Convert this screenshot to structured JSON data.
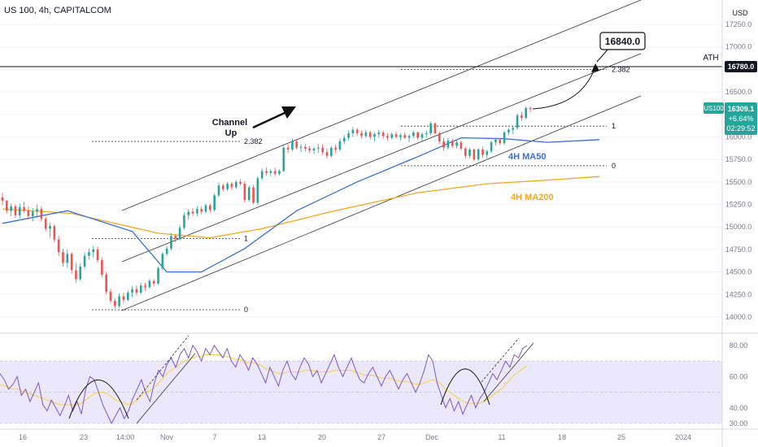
{
  "header": {
    "symbol_line": "US 100, 4h, CAPITALCOM",
    "currency": "USD"
  },
  "colors": {
    "bull": "#26a69a",
    "bear": "#ef5350",
    "ma50": "#3a6fd8",
    "ma200": "#f5a623",
    "rsi": "#7e57c2",
    "rsi_ma": "#f2d23c",
    "rsi_band": "#ece8fb",
    "price_tag": "#26a69a",
    "ath_tag": "#131722"
  },
  "chart_data": [
    {
      "type": "candlestick",
      "name": "price",
      "y_axis_ticks": [
        17250,
        17000,
        16750,
        16500,
        16250,
        16000,
        15750,
        15500,
        15250,
        15000,
        14750,
        14500,
        14250,
        14000
      ],
      "ylim": [
        13900,
        17350
      ],
      "x_tick_labels": [
        "16",
        "23",
        "14:00",
        "Nov",
        "7",
        "13",
        "20",
        "27",
        "Dec",
        "11",
        "18",
        "25",
        "2024"
      ],
      "candles": [
        {
          "o": 15330,
          "h": 15380,
          "l": 15240,
          "c": 15290
        },
        {
          "o": 15290,
          "h": 15300,
          "l": 15150,
          "c": 15180
        },
        {
          "o": 15180,
          "h": 15260,
          "l": 15120,
          "c": 15230
        },
        {
          "o": 15230,
          "h": 15250,
          "l": 15100,
          "c": 15130
        },
        {
          "o": 15130,
          "h": 15260,
          "l": 15090,
          "c": 15220
        },
        {
          "o": 15220,
          "h": 15280,
          "l": 15150,
          "c": 15180
        },
        {
          "o": 15180,
          "h": 15230,
          "l": 15080,
          "c": 15120
        },
        {
          "o": 15120,
          "h": 15210,
          "l": 15060,
          "c": 15170
        },
        {
          "o": 15170,
          "h": 15250,
          "l": 15120,
          "c": 15200
        },
        {
          "o": 15200,
          "h": 15230,
          "l": 15060,
          "c": 15090
        },
        {
          "o": 15090,
          "h": 15120,
          "l": 14950,
          "c": 14980
        },
        {
          "o": 14980,
          "h": 15050,
          "l": 14880,
          "c": 15010
        },
        {
          "o": 15010,
          "h": 15030,
          "l": 14830,
          "c": 14860
        },
        {
          "o": 14860,
          "h": 14900,
          "l": 14680,
          "c": 14720
        },
        {
          "o": 14720,
          "h": 14760,
          "l": 14560,
          "c": 14600
        },
        {
          "o": 14600,
          "h": 14750,
          "l": 14550,
          "c": 14700
        },
        {
          "o": 14700,
          "h": 14720,
          "l": 14480,
          "c": 14520
        },
        {
          "o": 14520,
          "h": 14600,
          "l": 14380,
          "c": 14420
        },
        {
          "o": 14420,
          "h": 14600,
          "l": 14400,
          "c": 14560
        },
        {
          "o": 14560,
          "h": 14720,
          "l": 14530,
          "c": 14680
        },
        {
          "o": 14680,
          "h": 14760,
          "l": 14640,
          "c": 14720
        },
        {
          "o": 14720,
          "h": 14790,
          "l": 14660,
          "c": 14750
        },
        {
          "o": 14750,
          "h": 14780,
          "l": 14600,
          "c": 14630
        },
        {
          "o": 14630,
          "h": 14660,
          "l": 14440,
          "c": 14470
        },
        {
          "o": 14470,
          "h": 14500,
          "l": 14250,
          "c": 14280
        },
        {
          "o": 14280,
          "h": 14310,
          "l": 14150,
          "c": 14180
        },
        {
          "o": 14180,
          "h": 14210,
          "l": 14090,
          "c": 14120
        },
        {
          "o": 14120,
          "h": 14260,
          "l": 14100,
          "c": 14230
        },
        {
          "o": 14230,
          "h": 14270,
          "l": 14150,
          "c": 14190
        },
        {
          "o": 14190,
          "h": 14300,
          "l": 14170,
          "c": 14270
        },
        {
          "o": 14270,
          "h": 14340,
          "l": 14220,
          "c": 14310
        },
        {
          "o": 14310,
          "h": 14350,
          "l": 14240,
          "c": 14270
        },
        {
          "o": 14270,
          "h": 14380,
          "l": 14250,
          "c": 14350
        },
        {
          "o": 14350,
          "h": 14380,
          "l": 14290,
          "c": 14330
        },
        {
          "o": 14330,
          "h": 14420,
          "l": 14310,
          "c": 14400
        },
        {
          "o": 14400,
          "h": 14420,
          "l": 14340,
          "c": 14370
        },
        {
          "o": 14370,
          "h": 14560,
          "l": 14360,
          "c": 14540
        },
        {
          "o": 14540,
          "h": 14720,
          "l": 14520,
          "c": 14700
        },
        {
          "o": 14700,
          "h": 14790,
          "l": 14680,
          "c": 14760
        },
        {
          "o": 14760,
          "h": 14930,
          "l": 14740,
          "c": 14900
        },
        {
          "o": 14900,
          "h": 14920,
          "l": 14830,
          "c": 14870
        },
        {
          "o": 14870,
          "h": 15020,
          "l": 14850,
          "c": 14990
        },
        {
          "o": 14990,
          "h": 15160,
          "l": 14970,
          "c": 15130
        },
        {
          "o": 15130,
          "h": 15200,
          "l": 15080,
          "c": 15170
        },
        {
          "o": 15170,
          "h": 15210,
          "l": 15120,
          "c": 15150
        },
        {
          "o": 15150,
          "h": 15230,
          "l": 15120,
          "c": 15200
        },
        {
          "o": 15200,
          "h": 15230,
          "l": 15140,
          "c": 15170
        },
        {
          "o": 15170,
          "h": 15260,
          "l": 15150,
          "c": 15240
        },
        {
          "o": 15240,
          "h": 15260,
          "l": 15160,
          "c": 15190
        },
        {
          "o": 15190,
          "h": 15380,
          "l": 15170,
          "c": 15350
        },
        {
          "o": 15350,
          "h": 15490,
          "l": 15330,
          "c": 15460
        },
        {
          "o": 15460,
          "h": 15480,
          "l": 15390,
          "c": 15420
        },
        {
          "o": 15420,
          "h": 15500,
          "l": 15400,
          "c": 15480
        },
        {
          "o": 15480,
          "h": 15500,
          "l": 15410,
          "c": 15440
        },
        {
          "o": 15440,
          "h": 15520,
          "l": 15420,
          "c": 15500
        },
        {
          "o": 15500,
          "h": 15530,
          "l": 15460,
          "c": 15480
        },
        {
          "o": 15480,
          "h": 15510,
          "l": 15270,
          "c": 15300
        },
        {
          "o": 15300,
          "h": 15460,
          "l": 15280,
          "c": 15440
        },
        {
          "o": 15440,
          "h": 15470,
          "l": 15250,
          "c": 15270
        },
        {
          "o": 15270,
          "h": 15560,
          "l": 15250,
          "c": 15540
        },
        {
          "o": 15540,
          "h": 15650,
          "l": 15520,
          "c": 15620
        },
        {
          "o": 15620,
          "h": 15660,
          "l": 15570,
          "c": 15600
        },
        {
          "o": 15600,
          "h": 15640,
          "l": 15560,
          "c": 15620
        },
        {
          "o": 15620,
          "h": 15660,
          "l": 15560,
          "c": 15590
        },
        {
          "o": 15590,
          "h": 15640,
          "l": 15570,
          "c": 15620
        },
        {
          "o": 15620,
          "h": 15900,
          "l": 15610,
          "c": 15880
        },
        {
          "o": 15880,
          "h": 15920,
          "l": 15820,
          "c": 15860
        },
        {
          "o": 15860,
          "h": 15980,
          "l": 15840,
          "c": 15950
        },
        {
          "o": 15950,
          "h": 15970,
          "l": 15860,
          "c": 15880
        },
        {
          "o": 15880,
          "h": 15920,
          "l": 15830,
          "c": 15890
        },
        {
          "o": 15890,
          "h": 15920,
          "l": 15840,
          "c": 15870
        },
        {
          "o": 15870,
          "h": 15900,
          "l": 15820,
          "c": 15850
        },
        {
          "o": 15850,
          "h": 15890,
          "l": 15810,
          "c": 15870
        },
        {
          "o": 15870,
          "h": 15920,
          "l": 15820,
          "c": 15880
        },
        {
          "o": 15880,
          "h": 15920,
          "l": 15800,
          "c": 15830
        },
        {
          "o": 15830,
          "h": 15870,
          "l": 15760,
          "c": 15790
        },
        {
          "o": 15790,
          "h": 15900,
          "l": 15770,
          "c": 15880
        },
        {
          "o": 15880,
          "h": 15910,
          "l": 15820,
          "c": 15860
        },
        {
          "o": 15860,
          "h": 15980,
          "l": 15840,
          "c": 15950
        },
        {
          "o": 15950,
          "h": 16020,
          "l": 15920,
          "c": 15990
        },
        {
          "o": 15990,
          "h": 16070,
          "l": 15960,
          "c": 16040
        },
        {
          "o": 16040,
          "h": 16110,
          "l": 16000,
          "c": 16080
        },
        {
          "o": 16080,
          "h": 16100,
          "l": 16010,
          "c": 16040
        },
        {
          "o": 16040,
          "h": 16070,
          "l": 15980,
          "c": 16010
        },
        {
          "o": 16010,
          "h": 16080,
          "l": 15990,
          "c": 16050
        },
        {
          "o": 16050,
          "h": 16070,
          "l": 15970,
          "c": 16000
        },
        {
          "o": 16000,
          "h": 16050,
          "l": 15950,
          "c": 16030
        },
        {
          "o": 16030,
          "h": 16080,
          "l": 15990,
          "c": 16050
        },
        {
          "o": 16050,
          "h": 16070,
          "l": 15980,
          "c": 16010
        },
        {
          "o": 16010,
          "h": 16040,
          "l": 15960,
          "c": 15990
        },
        {
          "o": 15990,
          "h": 16050,
          "l": 15970,
          "c": 16030
        },
        {
          "o": 16030,
          "h": 16060,
          "l": 15980,
          "c": 16000
        },
        {
          "o": 16000,
          "h": 16040,
          "l": 15960,
          "c": 16020
        },
        {
          "o": 16020,
          "h": 16050,
          "l": 15980,
          "c": 15990
        },
        {
          "o": 15990,
          "h": 16030,
          "l": 15940,
          "c": 16010
        },
        {
          "o": 16010,
          "h": 16070,
          "l": 15990,
          "c": 16050
        },
        {
          "o": 16050,
          "h": 16060,
          "l": 15970,
          "c": 15990
        },
        {
          "o": 15990,
          "h": 16050,
          "l": 15950,
          "c": 16030
        },
        {
          "o": 16030,
          "h": 16070,
          "l": 15990,
          "c": 16040
        },
        {
          "o": 16040,
          "h": 16170,
          "l": 16020,
          "c": 16150
        },
        {
          "o": 16150,
          "h": 16160,
          "l": 16020,
          "c": 16040
        },
        {
          "o": 16040,
          "h": 16060,
          "l": 15920,
          "c": 15950
        },
        {
          "o": 15950,
          "h": 15990,
          "l": 15850,
          "c": 15880
        },
        {
          "o": 15880,
          "h": 15990,
          "l": 15860,
          "c": 15960
        },
        {
          "o": 15960,
          "h": 15980,
          "l": 15880,
          "c": 15900
        },
        {
          "o": 15900,
          "h": 15970,
          "l": 15870,
          "c": 15940
        },
        {
          "o": 15940,
          "h": 15960,
          "l": 15850,
          "c": 15870
        },
        {
          "o": 15870,
          "h": 15890,
          "l": 15760,
          "c": 15790
        },
        {
          "o": 15790,
          "h": 15880,
          "l": 15760,
          "c": 15860
        },
        {
          "o": 15860,
          "h": 15870,
          "l": 15730,
          "c": 15750
        },
        {
          "o": 15750,
          "h": 15880,
          "l": 15730,
          "c": 15860
        },
        {
          "o": 15860,
          "h": 15890,
          "l": 15770,
          "c": 15800
        },
        {
          "o": 15800,
          "h": 15860,
          "l": 15760,
          "c": 15840
        },
        {
          "o": 15840,
          "h": 15960,
          "l": 15820,
          "c": 15940
        },
        {
          "o": 15940,
          "h": 15990,
          "l": 15900,
          "c": 15970
        },
        {
          "o": 15970,
          "h": 15990,
          "l": 15910,
          "c": 15930
        },
        {
          "o": 15930,
          "h": 16070,
          "l": 15910,
          "c": 16050
        },
        {
          "o": 16050,
          "h": 16100,
          "l": 16020,
          "c": 16080
        },
        {
          "o": 16080,
          "h": 16120,
          "l": 16030,
          "c": 16100
        },
        {
          "o": 16100,
          "h": 16260,
          "l": 16080,
          "c": 16240
        },
        {
          "o": 16240,
          "h": 16280,
          "l": 16180,
          "c": 16210
        },
        {
          "o": 16210,
          "h": 16340,
          "l": 16200,
          "c": 16320
        },
        {
          "o": 16320,
          "h": 16340,
          "l": 16270,
          "c": 16309
        }
      ],
      "ma50": [
        [
          0,
          15040
        ],
        [
          15,
          15180
        ],
        [
          30,
          14950
        ],
        [
          38,
          14500
        ],
        [
          46,
          14500
        ],
        [
          56,
          14760
        ],
        [
          68,
          15180
        ],
        [
          82,
          15500
        ],
        [
          96,
          15780
        ],
        [
          106,
          15990
        ],
        [
          116,
          15980
        ],
        [
          126,
          15940
        ],
        [
          138,
          15970
        ]
      ],
      "ma200": [
        [
          0,
          15200
        ],
        [
          16,
          15150
        ],
        [
          36,
          14930
        ],
        [
          48,
          14880
        ],
        [
          60,
          14980
        ],
        [
          76,
          15170
        ],
        [
          96,
          15380
        ],
        [
          112,
          15480
        ],
        [
          126,
          15520
        ],
        [
          138,
          15560
        ]
      ],
      "annotations": {
        "channel_label": "Channel Up",
        "ath_label": "ATH",
        "ath_level": 16780.0,
        "ath_tag": "16780.0",
        "target_label": "16840.0",
        "target_level": 16840.0,
        "ma50_label": "4H MA50",
        "ma200_label": "4H MA200",
        "price_tag_symbol": "US100",
        "price_tag_value": "16309.1",
        "price_tag_change": "+6.64%",
        "price_tag_timer": "02:29:52",
        "fib_left": {
          "level_0": "0",
          "level_1": "1",
          "level_2382": "2.382",
          "v0": 14080,
          "v1": 14870,
          "v2382": 15950
        },
        "fib_right": {
          "level_0": "0",
          "level_1": "1",
          "level_2382": "2.382",
          "v0": 15680,
          "v1": 16120,
          "v2382": 16750
        }
      }
    },
    {
      "type": "line",
      "name": "RSI",
      "y_axis_ticks": [
        80.0,
        60.0,
        40.0,
        30.0
      ],
      "y_axis_tick_labels": [
        "80.00",
        "60.00",
        "40.00",
        "30.00"
      ],
      "ylim": [
        28,
        87
      ],
      "band": [
        30,
        70
      ],
      "rsi": [
        62,
        58,
        52,
        55,
        60,
        48,
        52,
        44,
        50,
        56,
        42,
        38,
        45,
        40,
        35,
        41,
        48,
        38,
        44,
        36,
        52,
        60,
        58,
        50,
        42,
        36,
        30,
        35,
        40,
        33,
        38,
        46,
        52,
        58,
        50,
        44,
        56,
        64,
        60,
        68,
        72,
        66,
        74,
        78,
        72,
        80,
        76,
        70,
        78,
        74,
        80,
        76,
        72,
        78,
        70,
        66,
        74,
        70,
        64,
        72,
        68,
        62,
        56,
        66,
        60,
        54,
        64,
        70,
        62,
        58,
        66,
        72,
        68,
        60,
        64,
        56,
        62,
        68,
        74,
        66,
        60,
        66,
        72,
        64,
        58,
        56,
        62,
        66,
        60,
        54,
        60,
        64,
        58,
        52,
        58,
        62,
        56,
        50,
        56,
        64,
        74,
        70,
        56,
        48,
        40,
        46,
        38,
        44,
        36,
        42,
        48,
        40,
        46,
        50,
        56,
        62,
        58,
        64,
        70,
        66,
        74,
        72,
        78,
        80
      ],
      "rsi_ma": [
        55,
        54,
        53,
        52,
        52,
        51,
        50,
        49,
        48,
        47,
        46,
        45,
        44,
        43,
        42,
        42,
        42,
        42,
        42,
        43,
        45,
        47,
        49,
        50,
        50,
        49,
        47,
        45,
        44,
        43,
        42,
        43,
        45,
        48,
        50,
        51,
        53,
        56,
        59,
        62,
        64,
        66,
        68,
        70,
        71,
        72,
        73,
        73,
        74,
        74,
        74,
        74,
        73,
        73,
        72,
        71,
        71,
        70,
        69,
        69,
        68,
        67,
        65,
        64,
        63,
        62,
        62,
        63,
        63,
        63,
        63,
        64,
        64,
        64,
        63,
        63,
        63,
        63,
        64,
        64,
        64,
        64,
        64,
        63,
        62,
        61,
        61,
        61,
        60,
        59,
        59,
        59,
        58,
        57,
        57,
        57,
        56,
        55,
        55,
        56,
        57,
        58,
        57,
        55,
        52,
        50,
        48,
        46,
        44,
        43,
        43,
        43,
        43,
        44,
        46,
        48,
        50,
        52,
        55,
        58,
        61,
        63,
        65,
        67
      ]
    }
  ]
}
